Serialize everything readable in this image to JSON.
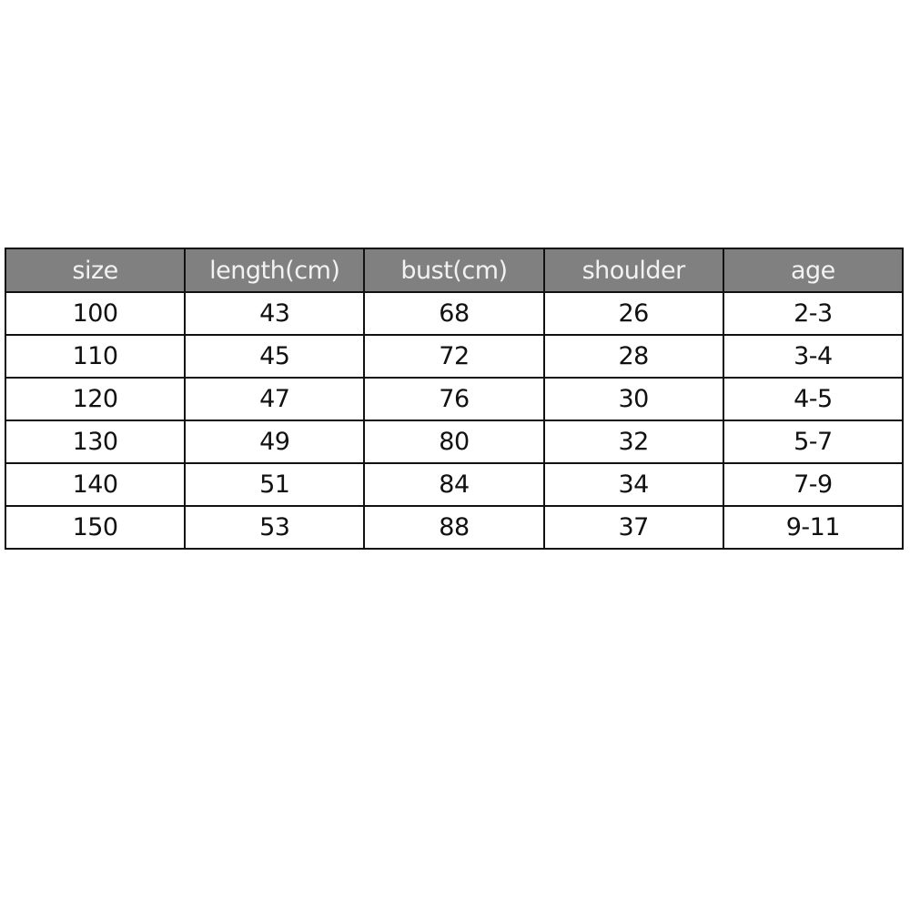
{
  "table": {
    "headers": [
      "size",
      "length(cm)",
      "bust(cm)",
      "shoulder",
      "age"
    ],
    "rows": [
      [
        "100",
        "43",
        "68",
        "26",
        "2-3"
      ],
      [
        "110",
        "45",
        "72",
        "28",
        "3-4"
      ],
      [
        "120",
        "47",
        "76",
        "30",
        "4-5"
      ],
      [
        "130",
        "49",
        "80",
        "32",
        "5-7"
      ],
      [
        "140",
        "51",
        "84",
        "34",
        "7-9"
      ],
      [
        "150",
        "53",
        "88",
        "37",
        "9-11"
      ]
    ],
    "header_bg": "#808080",
    "header_text": "#f2f2f2"
  }
}
